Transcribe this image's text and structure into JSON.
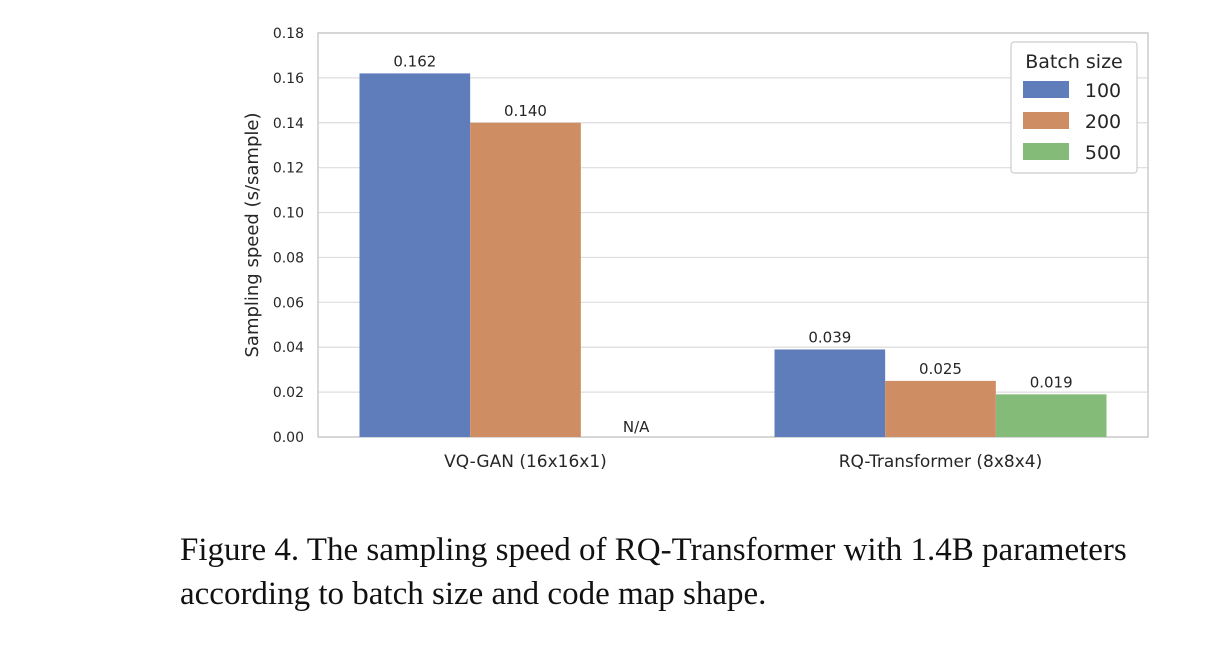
{
  "chart_data": {
    "type": "bar",
    "categories": [
      "VQ-GAN (16x16x1)",
      "RQ-Transformer (8x8x4)"
    ],
    "series": [
      {
        "name": "100",
        "values": [
          0.162,
          0.039
        ],
        "labels": [
          "0.162",
          "0.039"
        ],
        "color": "#5f7dba"
      },
      {
        "name": "200",
        "values": [
          0.14,
          0.025
        ],
        "labels": [
          "0.140",
          "0.025"
        ],
        "color": "#cf8d63"
      },
      {
        "name": "500",
        "values": [
          null,
          0.019
        ],
        "labels": [
          "N/A",
          "0.019"
        ],
        "color": "#84bb78"
      }
    ],
    "ylabel": "Sampling speed (s/sample)",
    "xlabel": "",
    "ylim": [
      0,
      0.18
    ],
    "yticks": [
      "0.00",
      "0.02",
      "0.04",
      "0.06",
      "0.08",
      "0.10",
      "0.12",
      "0.14",
      "0.16",
      "0.18"
    ],
    "legend_title": "Batch size",
    "legend_position": "top-right",
    "grid": "horizontal"
  },
  "caption": "Figure 4. The sampling speed of RQ-Transformer with 1.4B parameters according to batch size and code map shape."
}
